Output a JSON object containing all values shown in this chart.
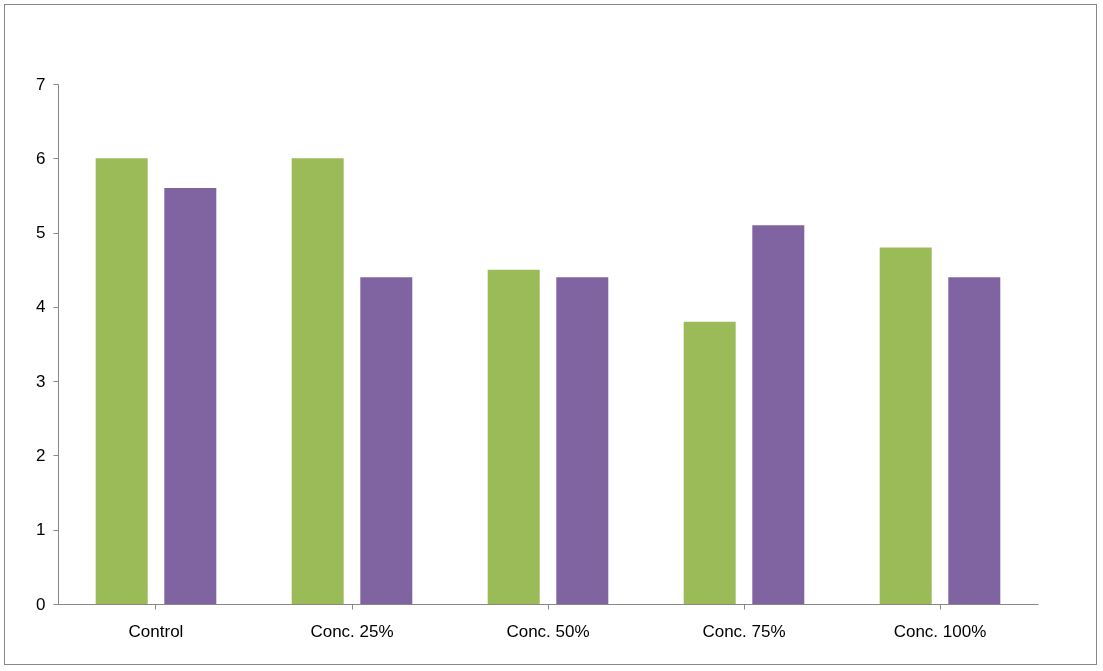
{
  "chart_data": {
    "type": "bar",
    "categories": [
      "Control",
      "Conc. 25%",
      "Conc. 50%",
      "Conc. 75%",
      "Conc. 100%"
    ],
    "series": [
      {
        "color": "#9bbb59",
        "values": [
          6.0,
          6.0,
          4.5,
          3.8,
          4.8
        ]
      },
      {
        "color": "#8064a2",
        "values": [
          5.6,
          4.4,
          4.4,
          5.1,
          4.4
        ]
      }
    ],
    "ylim": [
      0,
      7
    ],
    "yticks": [
      0,
      1,
      2,
      3,
      4,
      5,
      6,
      7
    ],
    "grid": false,
    "legend": false
  }
}
